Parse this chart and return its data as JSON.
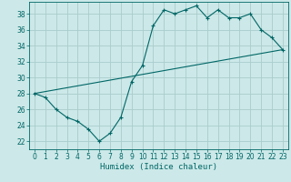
{
  "xlabel": "Humidex (Indice chaleur)",
  "ylabel": "",
  "background_color": "#cce8e8",
  "line_color": "#006666",
  "grid_color": "#aacccc",
  "xlim": [
    -0.5,
    23.5
  ],
  "ylim": [
    21.0,
    39.5
  ],
  "yticks": [
    22,
    24,
    26,
    28,
    30,
    32,
    34,
    36,
    38
  ],
  "xticks": [
    0,
    1,
    2,
    3,
    4,
    5,
    6,
    7,
    8,
    9,
    10,
    11,
    12,
    13,
    14,
    15,
    16,
    17,
    18,
    19,
    20,
    21,
    22,
    23
  ],
  "series1_x": [
    0,
    1,
    2,
    3,
    4,
    5,
    6,
    7,
    8,
    9,
    10,
    11,
    12,
    13,
    14,
    15,
    16,
    17,
    18,
    19,
    20,
    21,
    22,
    23
  ],
  "series1_y": [
    28.0,
    27.5,
    26.0,
    25.0,
    24.5,
    23.5,
    22.0,
    23.0,
    25.0,
    29.5,
    31.5,
    36.5,
    38.5,
    38.0,
    38.5,
    39.0,
    37.5,
    38.5,
    37.5,
    37.5,
    38.0,
    36.0,
    35.0,
    33.5
  ],
  "series2_x": [
    0,
    23
  ],
  "series2_y": [
    28.0,
    33.5
  ],
  "tick_fontsize": 5.5,
  "xlabel_fontsize": 6.5
}
